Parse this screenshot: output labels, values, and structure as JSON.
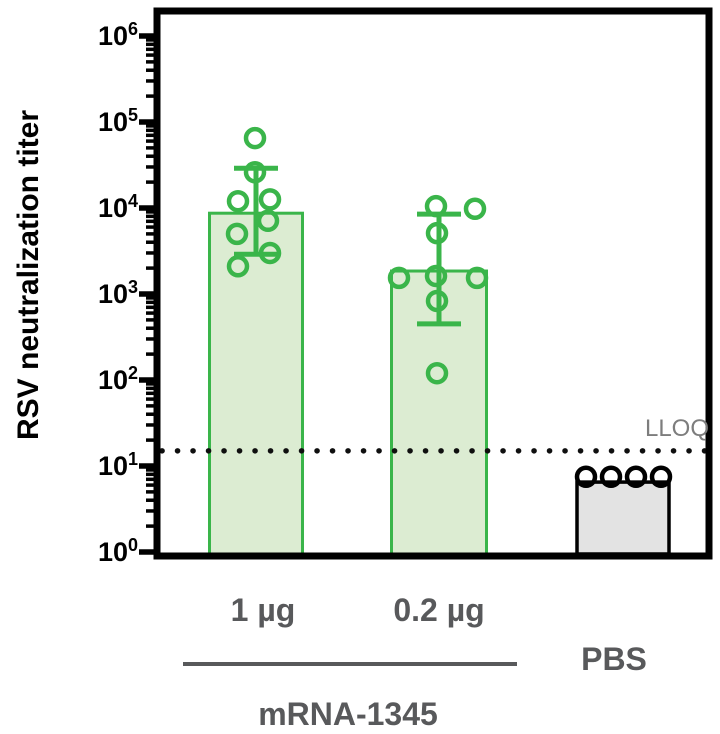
{
  "chart_data": {
    "type": "bar",
    "subtype": "bar-with-scatter-overlay",
    "title": "",
    "ylabel": "RSV neutralization titer",
    "xlabel": "",
    "yscale": "log",
    "ylim": [
      1,
      1000000
    ],
    "ytick_exponents": [
      0,
      1,
      2,
      3,
      4,
      5,
      6
    ],
    "grid": false,
    "legend": false,
    "lloq": {
      "label": "LLOQ",
      "value": 15
    },
    "categories": [
      "1 µg",
      "0.2 µg",
      "PBS"
    ],
    "group_annotation": {
      "label": "mRNA-1345",
      "applies_to": [
        "1 µg",
        "0.2 µg"
      ]
    },
    "series": [
      {
        "name": "1 µg",
        "bar_value": 8700,
        "error_high": 29000,
        "error_low": 2900,
        "stroke": "#3ab54a",
        "fill": "#dcecd2",
        "points": [
          {
            "value": 65000,
            "dx": -1
          },
          {
            "value": 26000,
            "dx": -1
          },
          {
            "value": 12600,
            "dx": 14
          },
          {
            "value": 12000,
            "dx": -18
          },
          {
            "value": 7100,
            "dx": 12
          },
          {
            "value": 5000,
            "dx": -19
          },
          {
            "value": 3000,
            "dx": 14
          },
          {
            "value": 2100,
            "dx": -18
          }
        ]
      },
      {
        "name": "0.2 µg",
        "bar_value": 1850,
        "error_high": 8500,
        "error_low": 450,
        "stroke": "#3ab54a",
        "fill": "#dcecd2",
        "points": [
          {
            "value": 10500,
            "dx": -3
          },
          {
            "value": 9800,
            "dx": 36
          },
          {
            "value": 5100,
            "dx": -2
          },
          {
            "value": 1620,
            "dx": -3
          },
          {
            "value": 1540,
            "dx": -40
          },
          {
            "value": 1540,
            "dx": 38
          },
          {
            "value": 830,
            "dx": -2
          },
          {
            "value": 120,
            "dx": -2
          }
        ]
      },
      {
        "name": "PBS",
        "bar_value": 6.5,
        "error_high": null,
        "error_low": null,
        "stroke": "#000000",
        "fill": "#e3e3e3",
        "points": [
          {
            "value": 7.5,
            "dx": -37
          },
          {
            "value": 7.5,
            "dx": -12
          },
          {
            "value": 7.5,
            "dx": 13
          },
          {
            "value": 7.5,
            "dx": 38
          }
        ]
      }
    ],
    "colors": {
      "green": "#3ab54a",
      "green_fill": "#dcecd2",
      "gray_fill": "#e3e3e3",
      "axis": "#000000",
      "label_gray": "#58595b",
      "lloq_gray": "#7d7d7d"
    }
  }
}
